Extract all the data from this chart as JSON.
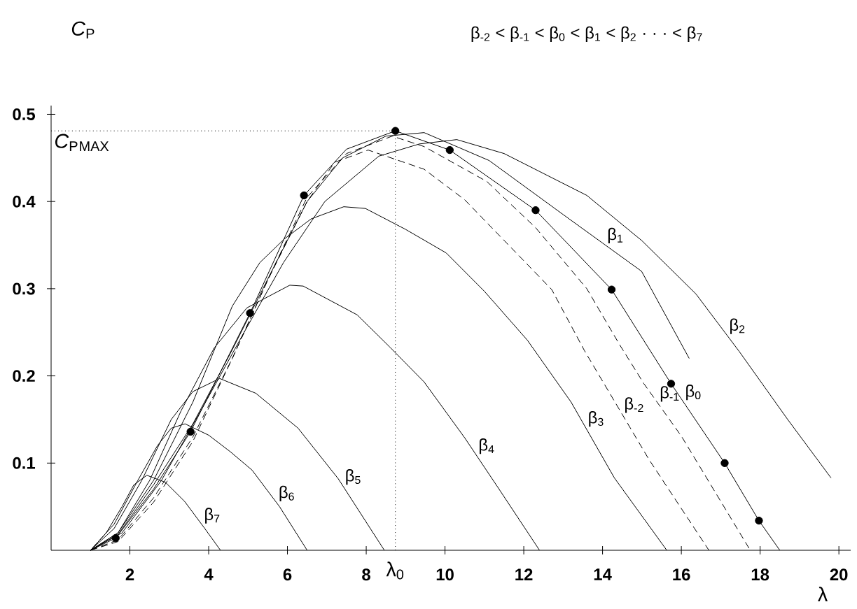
{
  "chart_data": {
    "type": "line",
    "ylabel": "*C*$_{P}$",
    "xlabel": "λ",
    "xlim": [
      0,
      20.3
    ],
    "ylim": [
      0,
      0.51
    ],
    "xticks": [
      2,
      4,
      6,
      8,
      10,
      12,
      14,
      16,
      18,
      20
    ],
    "yticks": [
      0.1,
      0.2,
      0.3,
      0.4,
      0.5
    ],
    "series": [
      {
        "name": "β$_{-2}$",
        "color": "#000000",
        "line_style": "dashed",
        "x": [
          1,
          1.7,
          2.6,
          3.6,
          4.6,
          5.5,
          6.5,
          7.2,
          8.05,
          9.47,
          10.5,
          12.71,
          13.54,
          15.18,
          16.7
        ],
        "values": [
          0,
          0.01,
          0.055,
          0.125,
          0.22,
          0.31,
          0.4,
          0.445,
          0.459,
          0.437,
          0.402,
          0.299,
          0.229,
          0.104,
          0
        ]
      },
      {
        "name": "β$_{-1}$",
        "color": "#000000",
        "line_style": "dashed",
        "x": [
          1,
          1.7,
          2.6,
          3.6,
          4.6,
          5.5,
          6.5,
          7.5,
          8.66,
          9.47,
          11.06,
          12.3,
          13.6,
          14.43,
          15.05,
          16.0,
          17.75
        ],
        "values": [
          0,
          0.012,
          0.06,
          0.13,
          0.22,
          0.31,
          0.405,
          0.455,
          0.475,
          0.463,
          0.423,
          0.37,
          0.3,
          0.236,
          0.191,
          0.131,
          0
        ]
      },
      {
        "name": "β$_{0}$",
        "color": "#000000",
        "line_style": "solid",
        "x": [
          1,
          1.64,
          2.6,
          3.54,
          5.05,
          6.42,
          7.5,
          8.74,
          10.12,
          12.3,
          14.23,
          15.74,
          17.1,
          17.97,
          18.5
        ],
        "values": [
          0,
          0.014,
          0.07,
          0.136,
          0.272,
          0.407,
          0.46,
          0.481,
          0.459,
          0.39,
          0.299,
          0.191,
          0.1,
          0.034,
          0
        ]
      },
      {
        "name": "β$_{1}$",
        "color": "#000000",
        "line_style": "solid",
        "x": [
          1,
          1.7,
          2.6,
          3.6,
          4.6,
          5.6,
          6.5,
          7.4,
          8.5,
          9.47,
          11.12,
          13,
          14.99,
          16.2
        ],
        "values": [
          0,
          0.018,
          0.075,
          0.145,
          0.23,
          0.32,
          0.4,
          0.45,
          0.475,
          0.479,
          0.447,
          0.385,
          0.32,
          0.22
        ]
      },
      {
        "name": "β$_{2}$",
        "color": "#000000",
        "line_style": "solid",
        "x": [
          1,
          1.8,
          2.8,
          3.8,
          4.9,
          5.9,
          6.95,
          8.32,
          9.35,
          10.3,
          11.5,
          13.6,
          15,
          16.37,
          17.47,
          18.7,
          19.8
        ],
        "values": [
          0,
          0.02,
          0.08,
          0.16,
          0.25,
          0.33,
          0.4,
          0.452,
          0.466,
          0.471,
          0.455,
          0.407,
          0.355,
          0.294,
          0.228,
          0.15,
          0.083
        ]
      },
      {
        "name": "β$_{3}$",
        "color": "#000000",
        "line_style": "solid",
        "x": [
          1,
          1.7,
          2.6,
          3.6,
          4.6,
          5.3,
          5.92,
          6.6,
          7.43,
          7.98,
          9,
          10.03,
          11,
          12.09,
          13.2,
          14.3,
          15.63
        ],
        "values": [
          0,
          0.02,
          0.08,
          0.17,
          0.28,
          0.33,
          0.357,
          0.38,
          0.394,
          0.392,
          0.368,
          0.341,
          0.297,
          0.241,
          0.17,
          0.083,
          0
        ]
      },
      {
        "name": "β$_{4}$",
        "color": "#000000",
        "line_style": "solid",
        "x": [
          1,
          1.7,
          2.5,
          3.3,
          4.14,
          4.97,
          6.06,
          6.4,
          7.77,
          8.6,
          9.47,
          10.5,
          11.33,
          12.4
        ],
        "values": [
          0,
          0.02,
          0.08,
          0.16,
          0.232,
          0.278,
          0.304,
          0.303,
          0.27,
          0.233,
          0.193,
          0.129,
          0.073,
          0
        ]
      },
      {
        "name": "β$_{5}$",
        "color": "#000000",
        "line_style": "solid",
        "x": [
          1,
          1.6,
          2.3,
          3.05,
          3.6,
          4.28,
          5.2,
          6.27,
          7.29,
          8.46
        ],
        "values": [
          0,
          0.025,
          0.08,
          0.15,
          0.182,
          0.197,
          0.18,
          0.14,
          0.082,
          0
        ]
      },
      {
        "name": "β$_{6}$",
        "color": "#000000",
        "line_style": "solid",
        "x": [
          1,
          1.6,
          2.2,
          2.7,
          3.05,
          3.4,
          4,
          4.55,
          5.1,
          5.8,
          6.5
        ],
        "values": [
          0,
          0.03,
          0.08,
          0.12,
          0.14,
          0.145,
          0.132,
          0.113,
          0.092,
          0.05,
          0
        ]
      },
      {
        "name": "β$_{7}$",
        "color": "#000000",
        "line_style": "solid",
        "x": [
          1,
          1.4,
          1.8,
          2.1,
          2.43,
          2.9,
          3.39,
          3.9,
          4.3
        ],
        "values": [
          0,
          0.02,
          0.05,
          0.075,
          0.086,
          0.078,
          0.056,
          0.025,
          0
        ]
      },
      {
        "type": "scatter",
        "marker": "circle",
        "color": "#000000",
        "x": [
          1.64,
          3.54,
          5.05,
          6.42,
          8.74,
          10.12,
          12.3,
          14.23,
          15.74,
          17.1,
          17.97
        ],
        "values": [
          0.014,
          0.136,
          0.272,
          0.407,
          0.481,
          0.459,
          0.39,
          0.299,
          0.191,
          0.1,
          0.034
        ]
      }
    ],
    "ref_lines": [
      {
        "axis": "y",
        "value": 0.481,
        "label": "*C*$_{P}$$_{MAX}$",
        "line_style": "dotted"
      },
      {
        "axis": "x",
        "value": 8.74,
        "label": "λ$_{0}$",
        "line_style": "dotted"
      }
    ],
    "annotations": [
      "β$_{-2}$ < β$_{-1}$ < β$_{0}$ < β$_{1}$ < β$_{2}$ · · · < β$_{7}$"
    ]
  }
}
